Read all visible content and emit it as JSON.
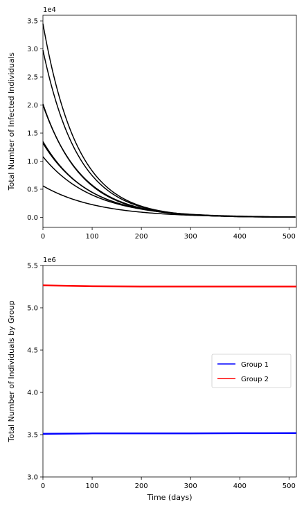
{
  "chart_data": [
    {
      "type": "line",
      "title": "",
      "xlabel": "",
      "ylabel": "Total Number of Infected Individuals",
      "offset_text": "1e4",
      "xlim": [
        0,
        515
      ],
      "ylim": [
        -0.18,
        3.6
      ],
      "xticks": [
        0,
        100,
        200,
        300,
        400,
        500
      ],
      "xtick_labels": [
        "0",
        "100",
        "200",
        "300",
        "400",
        "500"
      ],
      "yticks": [
        0.0,
        0.5,
        1.0,
        1.5,
        2.0,
        2.5,
        3.0,
        3.5
      ],
      "ytick_labels": [
        "0.0",
        "0.5",
        "1.0",
        "1.5",
        "2.0",
        "2.5",
        "3.0",
        "3.5"
      ],
      "grid": false,
      "color": "#000000",
      "series": [
        {
          "initial": 3.45,
          "decay_days": 70
        },
        {
          "initial": 2.98,
          "decay_days": 72
        },
        {
          "initial": 2.02,
          "decay_days": 78
        },
        {
          "initial": 2.0,
          "decay_days": 80
        },
        {
          "initial": 1.35,
          "decay_days": 90
        },
        {
          "initial": 1.32,
          "decay_days": 92
        },
        {
          "initial": 1.08,
          "decay_days": 100
        },
        {
          "initial": 0.56,
          "decay_days": 110
        }
      ]
    },
    {
      "type": "line",
      "title": "",
      "xlabel": "Time (days)",
      "ylabel": "Total Number of Individuals by Group",
      "offset_text": "1e6",
      "xlim": [
        0,
        515
      ],
      "ylim": [
        3.0,
        5.5
      ],
      "xticks": [
        0,
        100,
        200,
        300,
        400,
        500
      ],
      "xtick_labels": [
        "0",
        "100",
        "200",
        "300",
        "400",
        "500"
      ],
      "yticks": [
        3.0,
        3.5,
        4.0,
        4.5,
        5.0,
        5.5
      ],
      "ytick_labels": [
        "3.0",
        "3.5",
        "4.0",
        "4.5",
        "5.0",
        "5.5"
      ],
      "grid": false,
      "legend_position": "center-right",
      "series": [
        {
          "name": "Group 1",
          "color": "#0000ff",
          "x": [
            0,
            100,
            200,
            300,
            400,
            515
          ],
          "y": [
            3.51,
            3.515,
            3.515,
            3.515,
            3.517,
            3.518
          ]
        },
        {
          "name": "Group 2",
          "color": "#ff0000",
          "x": [
            0,
            100,
            200,
            300,
            400,
            515
          ],
          "y": [
            5.265,
            5.255,
            5.252,
            5.252,
            5.252,
            5.252
          ]
        }
      ]
    }
  ]
}
